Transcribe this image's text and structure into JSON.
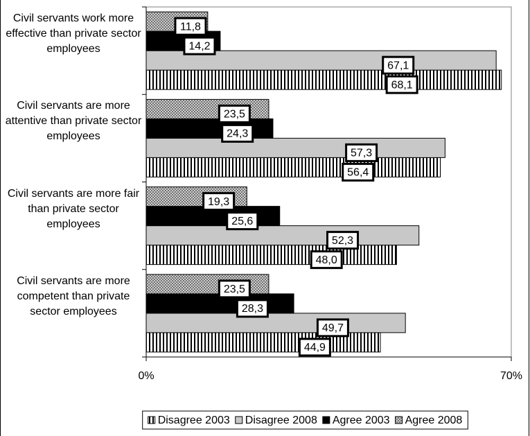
{
  "chart_data": {
    "type": "hbar",
    "categories": [
      "Civil servants work more effective than private sector employees",
      "Civil servants are more attentive than private sector employees",
      "Civil servants are more fair than private sector employees",
      "Civil servants are more competent than private sector employees"
    ],
    "series": [
      {
        "name": "Disagree 2003",
        "color": "#000000",
        "pattern": "stripes",
        "values": [
          68.1,
          56.4,
          48.0,
          44.9
        ],
        "value_labels": [
          "68,1",
          "56,4",
          "48,0",
          "44,9"
        ]
      },
      {
        "name": "Disagree 2008",
        "color": "#c8c8c8",
        "pattern": "solid",
        "values": [
          67.1,
          57.3,
          52.3,
          49.7
        ],
        "value_labels": [
          "67,1",
          "57,3",
          "52,3",
          "49,7"
        ]
      },
      {
        "name": "Agree 2003",
        "color": "#000000",
        "pattern": "solid",
        "values": [
          14.2,
          24.3,
          25.6,
          28.3
        ],
        "value_labels": [
          "14,2",
          "24,3",
          "25,6",
          "28,3"
        ]
      },
      {
        "name": "Agree 2008",
        "color": "#909090",
        "pattern": "dots",
        "values": [
          11.8,
          23.5,
          19.3,
          23.5
        ],
        "value_labels": [
          "11,8",
          "23,5",
          "19,3",
          "23,5"
        ]
      }
    ],
    "xlim": [
      0,
      70
    ],
    "xticks": [
      {
        "value": 0,
        "label": "0%"
      },
      {
        "value": 70,
        "label": "70%"
      }
    ],
    "legend": "bottom"
  }
}
